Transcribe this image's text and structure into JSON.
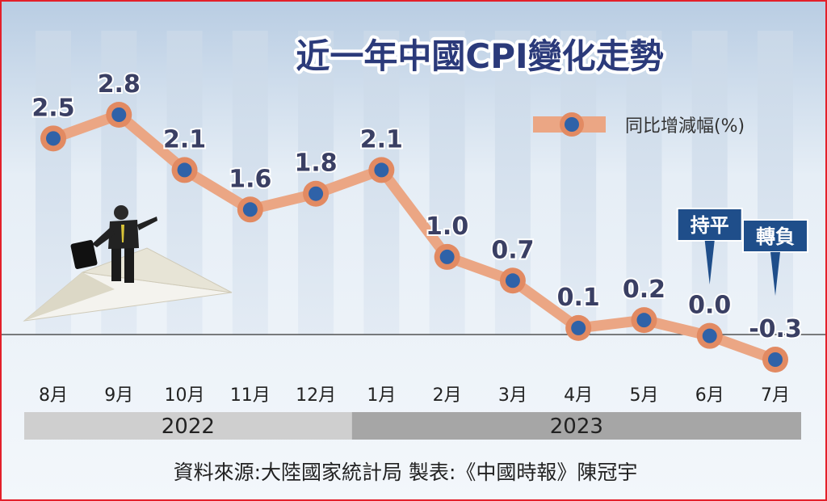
{
  "chart_data": {
    "type": "line",
    "title": "近一年中國CPI變化走勢",
    "categories": [
      "8月",
      "9月",
      "10月",
      "11月",
      "12月",
      "1月",
      "2月",
      "3月",
      "4月",
      "5月",
      "6月",
      "7月"
    ],
    "series": [
      {
        "name": "同比增減幅(%)",
        "values": [
          2.5,
          2.8,
          2.1,
          1.6,
          1.8,
          2.1,
          1.0,
          0.7,
          0.1,
          0.2,
          0.0,
          -0.3
        ],
        "labels": [
          "2.5",
          "2.8",
          "2.1",
          "1.6",
          "1.8",
          "2.1",
          "1.0",
          "0.7",
          "0.1",
          "0.2",
          "0.0",
          "-0.3"
        ]
      }
    ],
    "ylim": [
      -0.3,
      2.8
    ],
    "years": [
      {
        "label": "2022",
        "start": 0,
        "end": 4
      },
      {
        "label": "2023",
        "start": 5,
        "end": 11
      }
    ],
    "annotations": [
      {
        "text": "持平",
        "index": 10
      },
      {
        "text": "轉負",
        "index": 11
      }
    ],
    "legend_position": "top-right",
    "colors": {
      "line": "#eba684",
      "marker_ring": "#e28a62",
      "marker_center": "#2f62a8",
      "value_label": "#3a3f63",
      "annotation_bg": "#1f4e8a",
      "year_bar_2022": "#cfcfcf",
      "year_bar_2023": "#a6a6a6",
      "column": "#d9e3ee"
    }
  },
  "source": "資料來源:大陸國家統計局  製表:《中國時報》陳冠宇"
}
